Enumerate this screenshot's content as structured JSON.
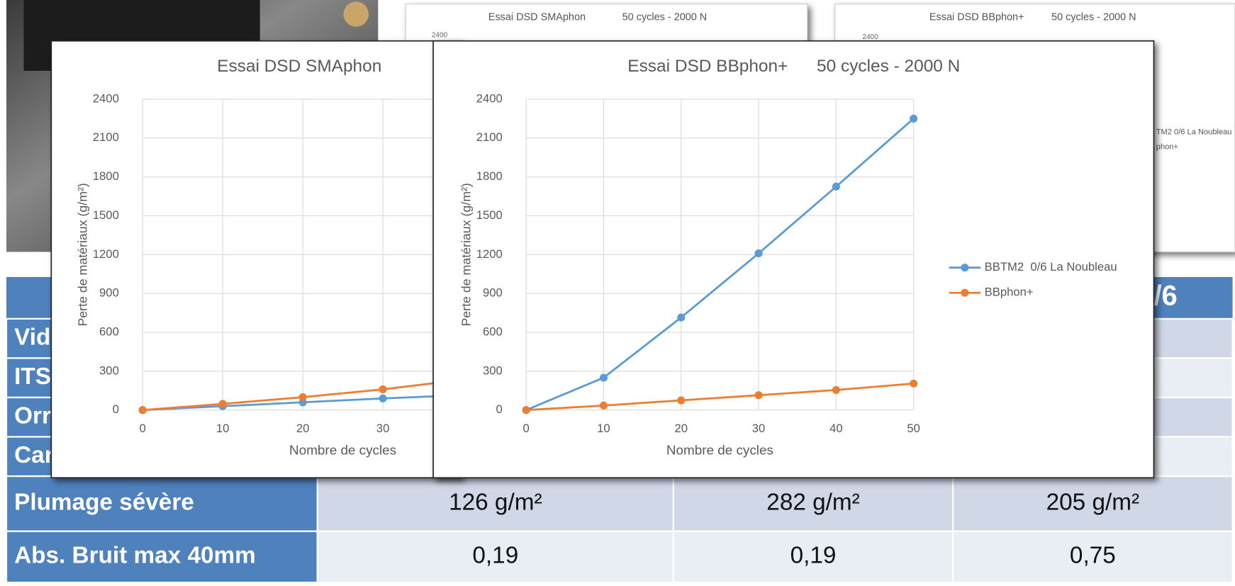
{
  "thumbnails": [
    {
      "title": "Essai DSD SMAphon",
      "subtitle": "50 cycles - 2000 N",
      "ytick": "2400"
    },
    {
      "title": "Essai DSD BBphon+",
      "subtitle": "50 cycles - 2000 N",
      "ytick": "2400",
      "legend": [
        "TM2 0/6 La Noubleau",
        "phon+"
      ]
    }
  ],
  "table": {
    "header_right": "/6",
    "rows": [
      [
        "Vid"
      ],
      [
        "ITS"
      ],
      [
        "Orr"
      ],
      [
        "Car"
      ],
      [
        "Plumage sévère",
        "126 g/m²",
        "282 g/m²",
        "205 g/m²"
      ],
      [
        "Abs. Bruit max 40mm",
        "0,19",
        "0,19",
        "0,75"
      ]
    ]
  },
  "chart_data": [
    {
      "type": "line",
      "title": "Essai DSD SMAphon",
      "xlabel": "Nombre de cycles",
      "ylabel": "Perte de matériaux (g/m²)",
      "x": [
        0,
        10,
        20,
        30,
        40
      ],
      "xlim": [
        0,
        50
      ],
      "xticks": [
        0,
        10,
        20,
        30
      ],
      "ylim": [
        0,
        2400
      ],
      "yticks": [
        0,
        300,
        600,
        900,
        1200,
        1500,
        1800,
        2100,
        2400
      ],
      "grid": true,
      "series": [
        {
          "color": "#5b9bd5",
          "values": [
            0,
            30,
            60,
            90,
            115
          ]
        },
        {
          "color": "#ed7d31",
          "values": [
            0,
            48,
            100,
            160,
            235
          ]
        }
      ]
    },
    {
      "type": "line",
      "title": "Essai DSD BBphon+      50 cycles - 2000 N",
      "xlabel": "Nombre de cycles",
      "ylabel": "Perte de matériaux (g/m²)",
      "x": [
        0,
        10,
        20,
        30,
        40,
        50
      ],
      "xlim": [
        0,
        50
      ],
      "xticks": [
        0,
        10,
        20,
        30,
        40,
        50
      ],
      "ylim": [
        0,
        2400
      ],
      "yticks": [
        0,
        300,
        600,
        900,
        1200,
        1500,
        1800,
        2100,
        2400
      ],
      "grid": true,
      "legend": "right",
      "series": [
        {
          "name": "BBTM2  0/6 La Noubleau",
          "color": "#5b9bd5",
          "values": [
            0,
            250,
            715,
            1210,
            1725,
            2250
          ]
        },
        {
          "name": "BBphon+",
          "color": "#ed7d31",
          "values": [
            0,
            35,
            75,
            115,
            155,
            205
          ]
        }
      ]
    }
  ]
}
